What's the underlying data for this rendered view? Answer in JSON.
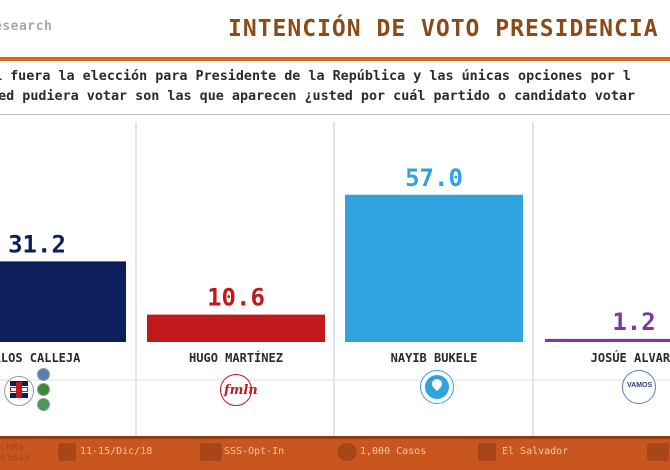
{
  "header": {
    "brand": "esearch",
    "title": "INTENCIÓN DE VOTO PRESIDENCIA",
    "accent_color": "#d2691e",
    "title_color": "#8a4a1a"
  },
  "question": {
    "line1": "i fuera la elección para Presidente de la República y las únicas opciones por l",
    "line2": "sted pudiera votar son las que aparecen ¿usted por cuál partido o candidato votar"
  },
  "chart_data": {
    "type": "bar",
    "categories": [
      "RLOS CALLEJA",
      "HUGO MARTÍNEZ",
      "NAYIB BUKELE",
      "JOSÚE ALVARA"
    ],
    "values": [
      31.2,
      10.6,
      57.0,
      1.2
    ],
    "value_labels": [
      "31.2",
      "10.6",
      "57.0",
      "1.2"
    ],
    "colors": [
      "#0c1f5c",
      "#c0191b",
      "#2ea3dd",
      "#7b3aa0"
    ],
    "ylim": [
      0,
      60
    ],
    "grid": false,
    "legend": "none",
    "title": "INTENCIÓN DE VOTO PRESIDENCIA"
  },
  "logos": [
    {
      "icon": "arena-party-logos-icon",
      "label": "ARENA"
    },
    {
      "icon": "fmln-logo-icon",
      "label": "fmln"
    },
    {
      "icon": "gana-logo-icon",
      "label": ""
    },
    {
      "icon": "vamos-logo-icon",
      "label": "VAMOS"
    }
  ],
  "footer": {
    "left_line1": "chMa",
    "left_line2": "03645",
    "date": "11-15/Dic/18",
    "method": "SSS-Opt-In",
    "cases": "1,000 Casos",
    "country": "El Salvador",
    "color": "#c8561e"
  }
}
